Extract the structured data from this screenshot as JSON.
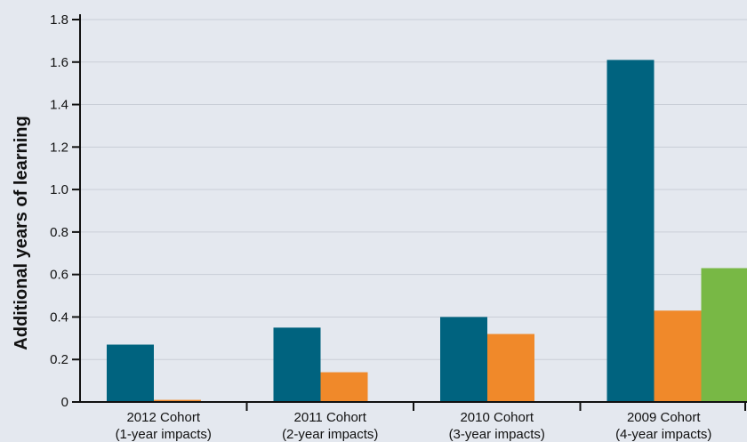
{
  "chart_data": {
    "type": "bar",
    "ylabel": "Additional years of learning",
    "xlabel": "",
    "ylim": [
      0,
      1.8
    ],
    "yticks": [
      "0",
      "0.2",
      "0.4",
      "0.6",
      "0.8",
      "1.0",
      "1.2",
      "1.4",
      "1.6",
      "1.8"
    ],
    "grid": true,
    "categories": [
      {
        "line1": "2012 Cohort",
        "line2": "(1-year impacts)"
      },
      {
        "line1": "2011 Cohort",
        "line2": "(2-year impacts)"
      },
      {
        "line1": "2010 Cohort",
        "line2": "(3-year impacts)"
      },
      {
        "line1": "2009 Cohort",
        "line2": "(4-year impacts)"
      }
    ],
    "series": [
      {
        "color": "#00637f",
        "values": [
          0.27,
          0.35,
          0.4,
          1.61
        ]
      },
      {
        "color": "#f0892a",
        "values": [
          0.01,
          0.14,
          0.32,
          0.43
        ]
      },
      {
        "color": "#78b845",
        "values": [
          null,
          null,
          null,
          0.63
        ]
      }
    ]
  }
}
